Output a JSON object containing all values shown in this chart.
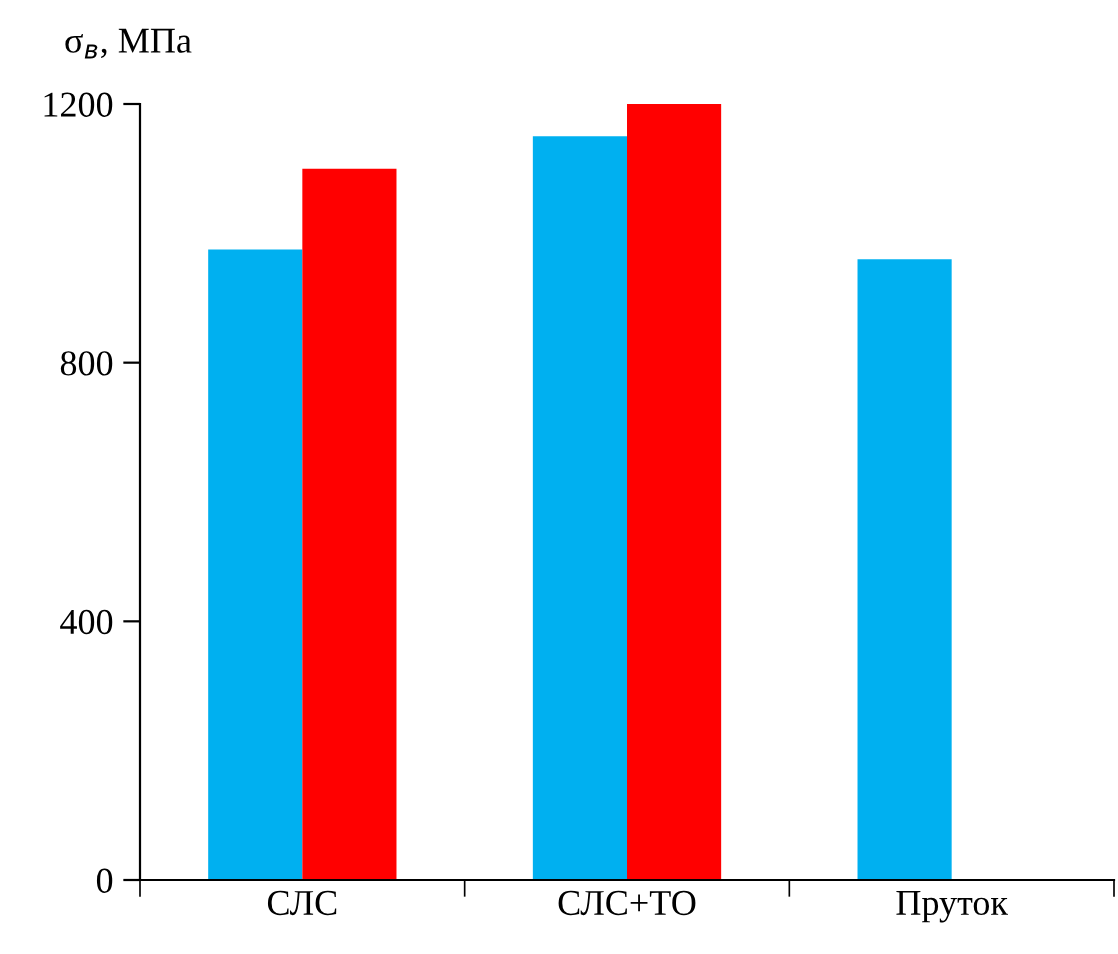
{
  "chart_data": {
    "type": "bar",
    "ylabel": "σ$_{в}$, МПа",
    "categories": [
      "СЛС",
      "СЛС+ТО",
      "Пруток"
    ],
    "series": [
      {
        "color": "#00b0f0",
        "values": [
          975,
          1150,
          960
        ]
      },
      {
        "color": "#ff0000",
        "values": [
          1100,
          1200,
          null
        ]
      }
    ],
    "ylim": [
      0,
      1200
    ],
    "yticks": [
      0,
      400,
      800,
      1200
    ],
    "grid": false,
    "legend": false
  }
}
